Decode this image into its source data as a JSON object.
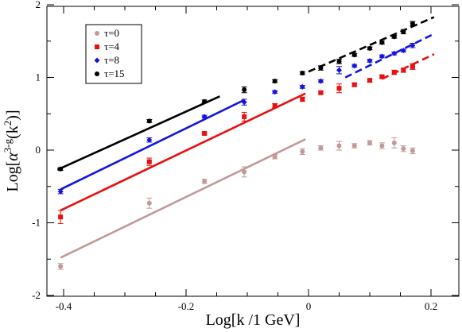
{
  "chart_data": {
    "type": "scatter",
    "title": "",
    "xlabel": "Log[k /1 GeV]",
    "ylabel_main": "Log[",
    "ylabel_alpha": "α",
    "ylabel_sup": "3-g",
    "ylabel_inner": "(k",
    "ylabel_sup2": "2",
    "ylabel_close": ")]",
    "xlim": [
      -0.45,
      0.22
    ],
    "ylim": [
      -2,
      2
    ],
    "xticks": [
      -0.4,
      -0.2,
      0,
      0.2
    ],
    "xtick_labels": [
      "-0.4",
      "-0.2",
      "0",
      "0.2"
    ],
    "yticks": [
      -2,
      -1,
      0,
      1,
      2
    ],
    "ytick_labels": [
      "-2",
      "-1",
      "0",
      "1",
      "2"
    ],
    "grid": false,
    "legend_position": "top-left",
    "series": [
      {
        "name": "τ=0",
        "color": "#c09a98",
        "marker": "circle",
        "points": [
          {
            "x": -0.405,
            "y": -1.6,
            "err": 0.04
          },
          {
            "x": -0.26,
            "y": -0.73,
            "err": 0.07
          },
          {
            "x": -0.17,
            "y": -0.43,
            "err": 0.03
          },
          {
            "x": -0.105,
            "y": -0.3,
            "err": 0.07
          },
          {
            "x": -0.055,
            "y": -0.09,
            "err": 0.03
          },
          {
            "x": -0.01,
            "y": -0.02,
            "err": 0.04
          },
          {
            "x": 0.02,
            "y": 0.03,
            "err": 0.03
          },
          {
            "x": 0.05,
            "y": 0.06,
            "err": 0.06
          },
          {
            "x": 0.075,
            "y": 0.06,
            "err": 0.03
          },
          {
            "x": 0.1,
            "y": 0.1,
            "err": 0.03
          },
          {
            "x": 0.12,
            "y": 0.06,
            "err": 0.04
          },
          {
            "x": 0.14,
            "y": 0.1,
            "err": 0.07
          },
          {
            "x": 0.155,
            "y": 0.02,
            "err": 0.04
          },
          {
            "x": 0.17,
            "y": -0.01,
            "err": 0.04
          }
        ],
        "fit": {
          "x": [
            -0.405,
            -0.005
          ],
          "y": [
            -1.48,
            0.15
          ]
        }
      },
      {
        "name": "τ=4",
        "color": "#e81010",
        "marker": "square",
        "points": [
          {
            "x": -0.405,
            "y": -0.92,
            "err": 0.09
          },
          {
            "x": -0.26,
            "y": -0.16,
            "err": 0.05
          },
          {
            "x": -0.17,
            "y": 0.23,
            "err": 0.02
          },
          {
            "x": -0.105,
            "y": 0.46,
            "err": 0.06
          },
          {
            "x": -0.055,
            "y": 0.61,
            "err": 0.03
          },
          {
            "x": -0.01,
            "y": 0.7,
            "err": 0.03
          },
          {
            "x": 0.02,
            "y": 0.79,
            "err": 0.02
          },
          {
            "x": 0.05,
            "y": 0.85,
            "err": 0.06
          },
          {
            "x": 0.075,
            "y": 0.9,
            "err": 0.02
          },
          {
            "x": 0.1,
            "y": 0.96,
            "err": 0.02
          },
          {
            "x": 0.12,
            "y": 1.01,
            "err": 0.02
          },
          {
            "x": 0.14,
            "y": 1.07,
            "err": 0.03
          },
          {
            "x": 0.155,
            "y": 1.1,
            "err": 0.03
          },
          {
            "x": 0.17,
            "y": 1.15,
            "err": 0.04
          }
        ],
        "fit": {
          "x": [
            -0.405,
            -0.005
          ],
          "y": [
            -0.83,
            0.78
          ]
        },
        "fit_dashed": {
          "x": [
            0.12,
            0.205
          ],
          "y": [
            0.98,
            1.32
          ]
        }
      },
      {
        "name": "τ=8",
        "color": "#1414e0",
        "marker": "diamond",
        "points": [
          {
            "x": -0.405,
            "y": -0.57,
            "err": 0.03
          },
          {
            "x": -0.26,
            "y": 0.14,
            "err": 0.03
          },
          {
            "x": -0.17,
            "y": 0.46,
            "err": 0.02
          },
          {
            "x": -0.105,
            "y": 0.66,
            "err": 0.04
          },
          {
            "x": -0.055,
            "y": 0.8,
            "err": 0.02
          },
          {
            "x": -0.01,
            "y": 0.87,
            "err": 0.02
          },
          {
            "x": 0.02,
            "y": 0.95,
            "err": 0.02
          },
          {
            "x": 0.05,
            "y": 1.1,
            "err": 0.05
          },
          {
            "x": 0.075,
            "y": 1.16,
            "err": 0.02
          },
          {
            "x": 0.1,
            "y": 1.23,
            "err": 0.02
          },
          {
            "x": 0.12,
            "y": 1.29,
            "err": 0.02
          },
          {
            "x": 0.14,
            "y": 1.33,
            "err": 0.02
          },
          {
            "x": 0.155,
            "y": 1.37,
            "err": 0.02
          },
          {
            "x": 0.17,
            "y": 1.44,
            "err": 0.03
          }
        ],
        "fit": {
          "x": [
            -0.405,
            -0.105
          ],
          "y": [
            -0.54,
            0.69
          ]
        },
        "fit_dashed": {
          "x": [
            0.06,
            0.205
          ],
          "y": [
            1.0,
            1.6
          ]
        }
      },
      {
        "name": "τ=15",
        "color": "#000000",
        "marker": "circle",
        "points": [
          {
            "x": -0.405,
            "y": -0.26,
            "err": 0.02
          },
          {
            "x": -0.26,
            "y": 0.4,
            "err": 0.02
          },
          {
            "x": -0.17,
            "y": 0.67,
            "err": 0.02
          },
          {
            "x": -0.105,
            "y": 0.83,
            "err": 0.04
          },
          {
            "x": -0.055,
            "y": 0.95,
            "err": 0.02
          },
          {
            "x": -0.01,
            "y": 1.06,
            "err": 0.02
          },
          {
            "x": 0.02,
            "y": 1.13,
            "err": 0.03
          },
          {
            "x": 0.05,
            "y": 1.22,
            "err": 0.03
          },
          {
            "x": 0.075,
            "y": 1.31,
            "err": 0.02
          },
          {
            "x": 0.1,
            "y": 1.4,
            "err": 0.02
          },
          {
            "x": 0.12,
            "y": 1.48,
            "err": 0.02
          },
          {
            "x": 0.14,
            "y": 1.56,
            "err": 0.02
          },
          {
            "x": 0.155,
            "y": 1.63,
            "err": 0.03
          },
          {
            "x": 0.17,
            "y": 1.74,
            "err": 0.03
          }
        ],
        "fit": {
          "x": [
            -0.41,
            -0.145
          ],
          "y": [
            -0.27,
            0.74
          ]
        },
        "fit_dashed": {
          "x": [
            0.0,
            0.205
          ],
          "y": [
            1.08,
            1.83
          ]
        }
      }
    ]
  }
}
